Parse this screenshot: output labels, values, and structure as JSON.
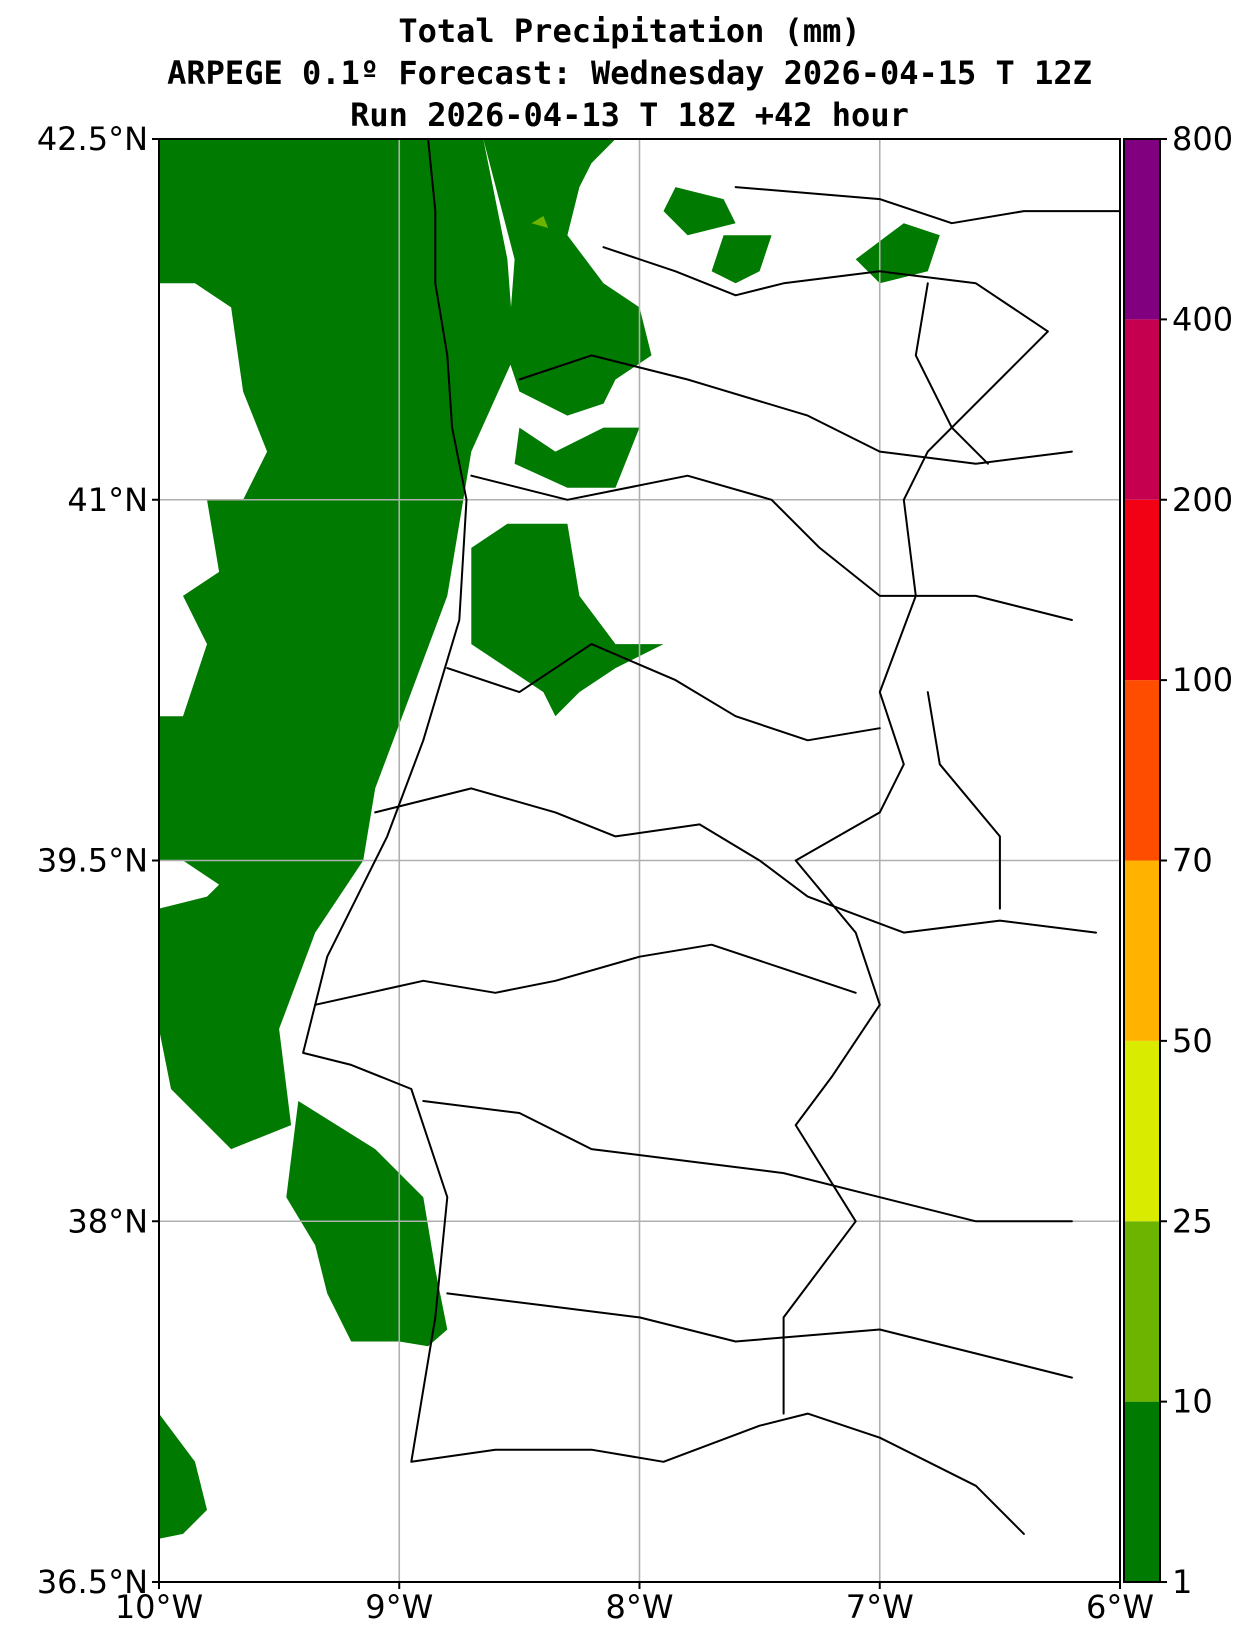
{
  "title": {
    "line1": "Total Precipitation (mm)",
    "line2": "ARPEGE 0.1º Forecast: Wednesday 2026-04-15 T 12Z",
    "line3": "Run 2026-04-13 T 18Z +42 hour"
  },
  "map": {
    "lon_range": [
      -10,
      -6
    ],
    "lat_range": [
      36.5,
      42.5
    ],
    "grid": true,
    "lon_ticks": [
      {
        "value": -10,
        "label": "10°W"
      },
      {
        "value": -9,
        "label": "9°W"
      },
      {
        "value": -8,
        "label": "8°W"
      },
      {
        "value": -7,
        "label": "7°W"
      },
      {
        "value": -6,
        "label": "6°W"
      }
    ],
    "lat_ticks": [
      {
        "value": 36.5,
        "label": "36.5°N"
      },
      {
        "value": 38,
        "label": "38°N"
      },
      {
        "value": 39.5,
        "label": "39.5°N"
      },
      {
        "value": 41,
        "label": "41°N"
      },
      {
        "value": 42.5,
        "label": "42.5°N"
      }
    ],
    "precip_areas": [
      {
        "name": "precip-offshore-main",
        "level": "1-10",
        "points": [
          [
            -10,
            42.5
          ],
          [
            -8.65,
            42.5
          ],
          [
            -8.55,
            42.0
          ],
          [
            -8.52,
            41.6
          ],
          [
            -8.7,
            41.2
          ],
          [
            -8.8,
            40.6
          ],
          [
            -8.95,
            40.2
          ],
          [
            -9.1,
            39.8
          ],
          [
            -9.15,
            39.5
          ],
          [
            -9.35,
            39.2
          ],
          [
            -9.5,
            38.8
          ],
          [
            -9.45,
            38.4
          ],
          [
            -9.7,
            38.3
          ],
          [
            -9.95,
            38.55
          ],
          [
            -10,
            38.8
          ],
          [
            -10,
            39.3
          ],
          [
            -9.8,
            39.35
          ],
          [
            -9.75,
            39.4
          ],
          [
            -9.9,
            39.5
          ],
          [
            -10,
            39.5
          ],
          [
            -10,
            40.1
          ],
          [
            -9.9,
            40.1
          ],
          [
            -9.8,
            40.4
          ],
          [
            -9.9,
            40.6
          ],
          [
            -9.75,
            40.7
          ],
          [
            -9.8,
            41.0
          ],
          [
            -9.65,
            41.0
          ],
          [
            -9.55,
            41.2
          ],
          [
            -9.65,
            41.45
          ],
          [
            -9.7,
            41.8
          ],
          [
            -9.85,
            41.9
          ],
          [
            -10,
            41.9
          ]
        ]
      },
      {
        "name": "precip-offshore-south",
        "level": "1-10",
        "points": [
          [
            -9.42,
            38.5
          ],
          [
            -9.1,
            38.3
          ],
          [
            -8.9,
            38.1
          ],
          [
            -8.85,
            37.8
          ],
          [
            -8.8,
            37.55
          ],
          [
            -8.88,
            37.48
          ],
          [
            -9.0,
            37.5
          ],
          [
            -9.2,
            37.5
          ],
          [
            -9.3,
            37.7
          ],
          [
            -9.35,
            37.9
          ],
          [
            -9.47,
            38.1
          ]
        ]
      },
      {
        "name": "precip-sw-corner",
        "level": "1-10",
        "points": [
          [
            -10,
            37.2
          ],
          [
            -9.85,
            37.0
          ],
          [
            -9.8,
            36.8
          ],
          [
            -9.9,
            36.7
          ],
          [
            -10,
            36.68
          ]
        ]
      },
      {
        "name": "precip-north-inland",
        "level": "1-10",
        "points": [
          [
            -8.65,
            42.5
          ],
          [
            -8.1,
            42.5
          ],
          [
            -8.2,
            42.4
          ],
          [
            -8.25,
            42.3
          ],
          [
            -8.3,
            42.1
          ],
          [
            -8.15,
            41.9
          ],
          [
            -8.0,
            41.8
          ],
          [
            -7.95,
            41.6
          ],
          [
            -8.1,
            41.5
          ],
          [
            -8.15,
            41.4
          ],
          [
            -8.3,
            41.35
          ],
          [
            -8.5,
            41.45
          ],
          [
            -8.55,
            41.6
          ],
          [
            -8.52,
            42.0
          ]
        ]
      },
      {
        "name": "precip-north-inner",
        "level": "1-10",
        "points": [
          [
            -8.52,
            41.15
          ],
          [
            -8.3,
            41.05
          ],
          [
            -8.1,
            41.05
          ],
          [
            -8.0,
            41.3
          ],
          [
            -8.15,
            41.3
          ],
          [
            -8.35,
            41.2
          ],
          [
            -8.5,
            41.3
          ]
        ]
      },
      {
        "name": "precip-central",
        "level": "1-10",
        "points": [
          [
            -8.7,
            40.8
          ],
          [
            -8.55,
            40.9
          ],
          [
            -8.3,
            40.9
          ],
          [
            -8.25,
            40.6
          ],
          [
            -8.1,
            40.4
          ],
          [
            -7.9,
            40.4
          ],
          [
            -8.1,
            40.3
          ],
          [
            -8.25,
            40.2
          ],
          [
            -8.35,
            40.1
          ],
          [
            -8.4,
            40.2
          ],
          [
            -8.55,
            40.3
          ],
          [
            -8.7,
            40.4
          ]
        ]
      },
      {
        "name": "precip-ne-blob-1",
        "level": "1-10",
        "points": [
          [
            -7.85,
            42.3
          ],
          [
            -7.65,
            42.25
          ],
          [
            -7.6,
            42.15
          ],
          [
            -7.8,
            42.1
          ],
          [
            -7.9,
            42.2
          ]
        ]
      },
      {
        "name": "precip-ne-blob-2",
        "level": "1-10",
        "points": [
          [
            -7.65,
            42.1
          ],
          [
            -7.45,
            42.1
          ],
          [
            -7.5,
            41.95
          ],
          [
            -7.6,
            41.9
          ],
          [
            -7.7,
            41.95
          ]
        ]
      },
      {
        "name": "precip-ne-blob-3",
        "level": "1-10",
        "points": [
          [
            -7.1,
            42.0
          ],
          [
            -6.9,
            42.15
          ],
          [
            -6.75,
            42.1
          ],
          [
            -6.8,
            41.95
          ],
          [
            -7.0,
            41.9
          ]
        ]
      },
      {
        "name": "precip-spot-1",
        "level": "10-25",
        "points": [
          [
            -8.45,
            42.15
          ],
          [
            -8.4,
            42.18
          ],
          [
            -8.38,
            42.13
          ]
        ]
      }
    ],
    "borders": [
      {
        "name": "coastline",
        "points": [
          [
            -8.88,
            42.5
          ],
          [
            -8.85,
            42.2
          ],
          [
            -8.85,
            41.9
          ],
          [
            -8.8,
            41.6
          ],
          [
            -8.78,
            41.3
          ],
          [
            -8.72,
            41.0
          ],
          [
            -8.75,
            40.5
          ],
          [
            -8.9,
            40.0
          ],
          [
            -9.05,
            39.6
          ],
          [
            -9.3,
            39.1
          ],
          [
            -9.4,
            38.7
          ],
          [
            -9.2,
            38.65
          ],
          [
            -8.95,
            38.55
          ],
          [
            -8.8,
            38.1
          ],
          [
            -8.85,
            37.6
          ],
          [
            -8.9,
            37.3
          ],
          [
            -8.95,
            37.0
          ],
          [
            -8.6,
            37.05
          ],
          [
            -8.2,
            37.05
          ],
          [
            -7.9,
            37.0
          ],
          [
            -7.5,
            37.15
          ],
          [
            -7.3,
            37.2
          ],
          [
            -7.0,
            37.1
          ],
          [
            -6.6,
            36.9
          ],
          [
            -6.4,
            36.7
          ]
        ]
      },
      {
        "name": "portugal-spain-border",
        "points": [
          [
            -8.15,
            42.05
          ],
          [
            -7.85,
            41.95
          ],
          [
            -7.6,
            41.85
          ],
          [
            -7.4,
            41.9
          ],
          [
            -7.0,
            41.95
          ],
          [
            -6.6,
            41.9
          ],
          [
            -6.3,
            41.7
          ],
          [
            -6.5,
            41.5
          ],
          [
            -6.8,
            41.2
          ],
          [
            -6.9,
            41.0
          ],
          [
            -6.85,
            40.6
          ],
          [
            -7.0,
            40.2
          ],
          [
            -6.9,
            39.9
          ],
          [
            -7.0,
            39.7
          ],
          [
            -7.35,
            39.5
          ],
          [
            -7.1,
            39.2
          ],
          [
            -7.0,
            38.9
          ],
          [
            -7.2,
            38.6
          ],
          [
            -7.35,
            38.4
          ],
          [
            -7.1,
            38.0
          ],
          [
            -7.4,
            37.6
          ],
          [
            -7.4,
            37.2
          ]
        ]
      },
      {
        "name": "district-line-1",
        "points": [
          [
            -8.5,
            41.5
          ],
          [
            -8.2,
            41.6
          ],
          [
            -7.8,
            41.5
          ],
          [
            -7.3,
            41.35
          ],
          [
            -7.0,
            41.2
          ],
          [
            -6.6,
            41.15
          ],
          [
            -6.2,
            41.2
          ]
        ]
      },
      {
        "name": "district-line-2",
        "points": [
          [
            -8.7,
            41.1
          ],
          [
            -8.3,
            41.0
          ],
          [
            -7.8,
            41.1
          ],
          [
            -7.45,
            41.0
          ],
          [
            -7.25,
            40.8
          ],
          [
            -7.0,
            40.6
          ],
          [
            -6.6,
            40.6
          ],
          [
            -6.2,
            40.5
          ]
        ]
      },
      {
        "name": "district-line-3",
        "points": [
          [
            -8.8,
            40.3
          ],
          [
            -8.5,
            40.2
          ],
          [
            -8.2,
            40.4
          ],
          [
            -7.85,
            40.25
          ],
          [
            -7.6,
            40.1
          ],
          [
            -7.3,
            40.0
          ],
          [
            -7.0,
            40.05
          ]
        ]
      },
      {
        "name": "district-line-4",
        "points": [
          [
            -9.1,
            39.7
          ],
          [
            -8.7,
            39.8
          ],
          [
            -8.35,
            39.7
          ],
          [
            -8.1,
            39.6
          ],
          [
            -7.75,
            39.65
          ],
          [
            -7.5,
            39.5
          ],
          [
            -7.3,
            39.35
          ],
          [
            -6.9,
            39.2
          ],
          [
            -6.5,
            39.25
          ],
          [
            -6.1,
            39.2
          ]
        ]
      },
      {
        "name": "district-line-5",
        "points": [
          [
            -9.35,
            38.9
          ],
          [
            -8.9,
            39.0
          ],
          [
            -8.6,
            38.95
          ],
          [
            -8.35,
            39.0
          ],
          [
            -8.0,
            39.1
          ],
          [
            -7.7,
            39.15
          ],
          [
            -7.4,
            39.05
          ],
          [
            -7.1,
            38.95
          ]
        ]
      },
      {
        "name": "district-line-6",
        "points": [
          [
            -8.9,
            38.5
          ],
          [
            -8.5,
            38.45
          ],
          [
            -8.2,
            38.3
          ],
          [
            -7.8,
            38.25
          ],
          [
            -7.4,
            38.2
          ],
          [
            -7.0,
            38.1
          ],
          [
            -6.6,
            38.0
          ],
          [
            -6.2,
            38.0
          ]
        ]
      },
      {
        "name": "district-line-7",
        "points": [
          [
            -8.8,
            37.7
          ],
          [
            -8.4,
            37.65
          ],
          [
            -8.0,
            37.6
          ],
          [
            -7.6,
            37.5
          ],
          [
            -7.0,
            37.55
          ],
          [
            -6.6,
            37.45
          ],
          [
            -6.2,
            37.35
          ]
        ]
      },
      {
        "name": "district-line-8",
        "points": [
          [
            -7.6,
            42.3
          ],
          [
            -7.0,
            42.25
          ],
          [
            -6.7,
            42.15
          ],
          [
            -6.4,
            42.2
          ],
          [
            -6.0,
            42.2
          ]
        ]
      },
      {
        "name": "district-line-9",
        "points": [
          [
            -6.8,
            41.9
          ],
          [
            -6.85,
            41.6
          ],
          [
            -6.7,
            41.3
          ],
          [
            -6.55,
            41.15
          ]
        ]
      },
      {
        "name": "district-line-10",
        "points": [
          [
            -6.8,
            40.2
          ],
          [
            -6.75,
            39.9
          ],
          [
            -6.5,
            39.6
          ],
          [
            -6.5,
            39.3
          ]
        ]
      }
    ]
  },
  "colorbar": {
    "levels": [
      {
        "value": 1,
        "label": "1",
        "color": "#007a00"
      },
      {
        "value": 10,
        "label": "10",
        "color": "#6cb400"
      },
      {
        "value": 25,
        "label": "25",
        "color": "#d9ec00"
      },
      {
        "value": 50,
        "label": "50",
        "color": "#ffb300"
      },
      {
        "value": 70,
        "label": "70",
        "color": "#ff4d00"
      },
      {
        "value": 100,
        "label": "100",
        "color": "#f20014"
      },
      {
        "value": 200,
        "label": "200",
        "color": "#c4004f"
      },
      {
        "value": 400,
        "label": "400",
        "color": "#80007f"
      },
      {
        "value": 800,
        "label": "800",
        "color": null
      }
    ]
  },
  "colors": {
    "precip_1_10": "#007a00",
    "precip_10_25": "#6cb400",
    "grid": "#b0b0b0",
    "border": "#000000"
  }
}
